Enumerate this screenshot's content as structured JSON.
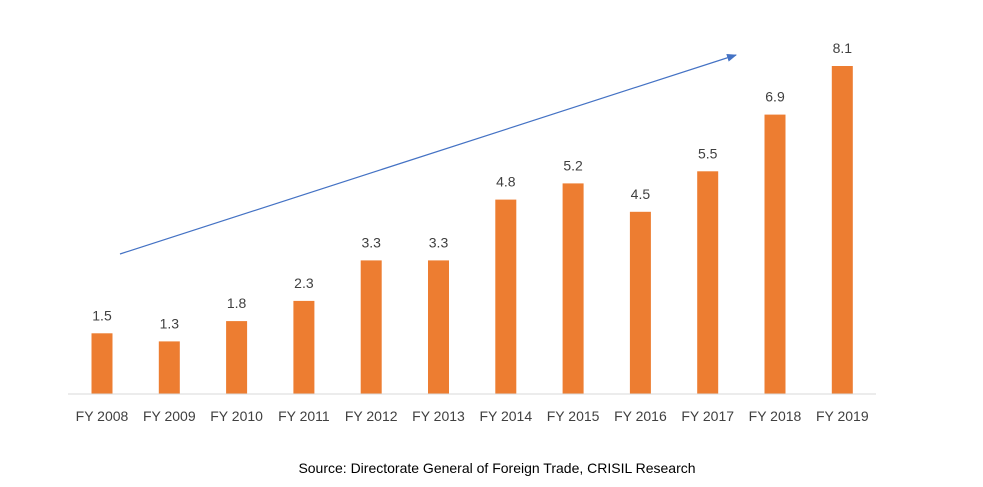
{
  "chart_data": {
    "type": "bar",
    "categories": [
      "FY 2008",
      "FY 2009",
      "FY 2010",
      "FY 2011",
      "FY 2012",
      "FY 2013",
      "FY 2014",
      "FY 2015",
      "FY 2016",
      "FY 2017",
      "FY 2018",
      "FY 2019"
    ],
    "values": [
      1.5,
      1.3,
      1.8,
      2.3,
      3.3,
      3.3,
      4.8,
      5.2,
      4.5,
      5.5,
      6.9,
      8.1
    ],
    "value_labels": [
      "1.5",
      "1.3",
      "1.8",
      "2.3",
      "3.3",
      "3.3",
      "4.8",
      "5.2",
      "4.5",
      "5.5",
      "6.9",
      "8.1"
    ],
    "ylim": [
      0,
      8.1
    ],
    "grid": false,
    "legend": "none",
    "bar_color": "#ED7D31",
    "trend_arrow": {
      "color": "#4472C4",
      "direction": "up-right"
    }
  },
  "source": "Source: Directorate General of Foreign Trade, CRISIL Research"
}
